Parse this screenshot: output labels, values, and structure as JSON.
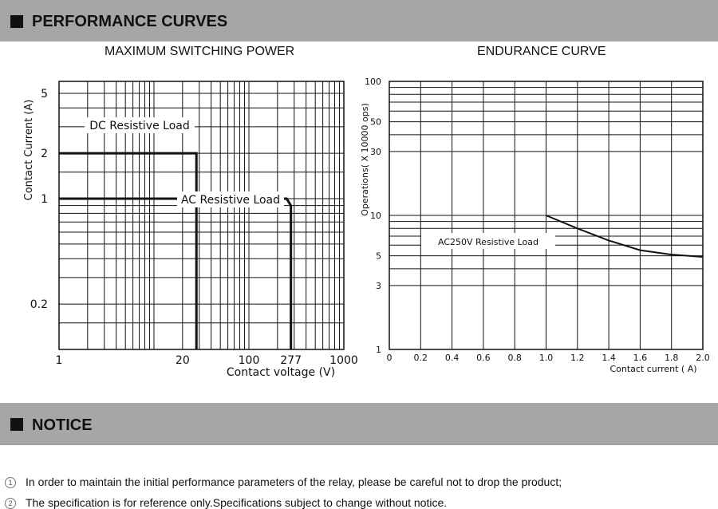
{
  "section_titles": {
    "performance": "PERFORMANCE CURVES",
    "notice": "NOTICE"
  },
  "chart_data": [
    {
      "type": "line",
      "title": "MAXIMUM SWITCHING POWER",
      "xlabel": "Contact voltage (V)",
      "ylabel": "Contact Current (A)",
      "x_scale": "log",
      "y_scale": "log",
      "xlim": [
        1,
        1000
      ],
      "ylim": [
        0.1,
        6
      ],
      "x_ticks": [
        "1",
        "20",
        "100",
        "277",
        "1000"
      ],
      "y_ticks": [
        "0.2",
        "1",
        "2",
        "5"
      ],
      "grid": true,
      "series": [
        {
          "name": "DC Resistive Load",
          "points": [
            [
              1,
              2
            ],
            [
              28,
              2
            ],
            [
              28,
              0.1
            ]
          ]
        },
        {
          "name": "AC Resistive Load",
          "points": [
            [
              1,
              1
            ],
            [
              250,
              1
            ],
            [
              277,
              0.9
            ],
            [
              277,
              0.1
            ]
          ]
        }
      ]
    },
    {
      "type": "line",
      "title": "ENDURANCE CURVE",
      "xlabel": "Contact current ( A)",
      "ylabel": "Operations( X 10000 ops)",
      "y_scale": "log",
      "xlim": [
        0,
        2.0
      ],
      "ylim": [
        1,
        100
      ],
      "x_ticks": [
        "0",
        "0.2",
        "0.4",
        "0.6",
        "0.8",
        "1.0",
        "1.2",
        "1.4",
        "1.6",
        "1.8",
        "2.0"
      ],
      "y_ticks": [
        "1",
        "3",
        "5",
        "10",
        "30",
        "50",
        "100"
      ],
      "grid": true,
      "series": [
        {
          "name": "AC250V Resistive Load",
          "x": [
            1.0,
            1.2,
            1.4,
            1.6,
            1.8,
            2.0
          ],
          "y": [
            10,
            8.0,
            6.5,
            5.5,
            5.1,
            4.9
          ]
        }
      ]
    }
  ],
  "notices": [
    {
      "num": "1",
      "text": "In order to maintain the initial performance parameters of the relay, please be careful not to drop the product;"
    },
    {
      "num": "2",
      "text": "The specification is for reference only.Specifications subject to change without notice."
    }
  ]
}
